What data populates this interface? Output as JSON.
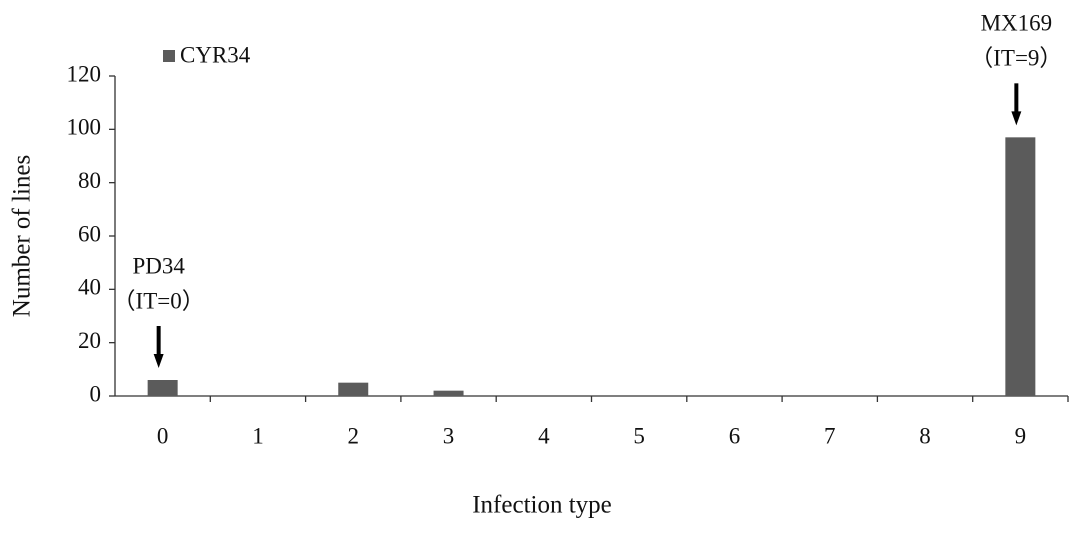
{
  "chart_data": {
    "type": "bar",
    "x_label": "Infection type",
    "y_label": "Number of lines",
    "categories": [
      "0",
      "1",
      "2",
      "3",
      "4",
      "5",
      "6",
      "7",
      "8",
      "9"
    ],
    "series": [
      {
        "name": "CYR34",
        "color": "#5b5b5b",
        "values": [
          6,
          0,
          5,
          2,
          0,
          0,
          0,
          0,
          0,
          97
        ]
      }
    ],
    "ylim": [
      0,
      120
    ],
    "yticks": [
      0,
      20,
      40,
      60,
      80,
      100,
      120
    ],
    "grid": false,
    "legend": "top-left",
    "annotations": [
      {
        "category": 0,
        "lines": [
          "PD34",
          "（IT=0）"
        ]
      },
      {
        "category": 9,
        "lines": [
          "MX169",
          "（IT=9）"
        ]
      }
    ]
  }
}
